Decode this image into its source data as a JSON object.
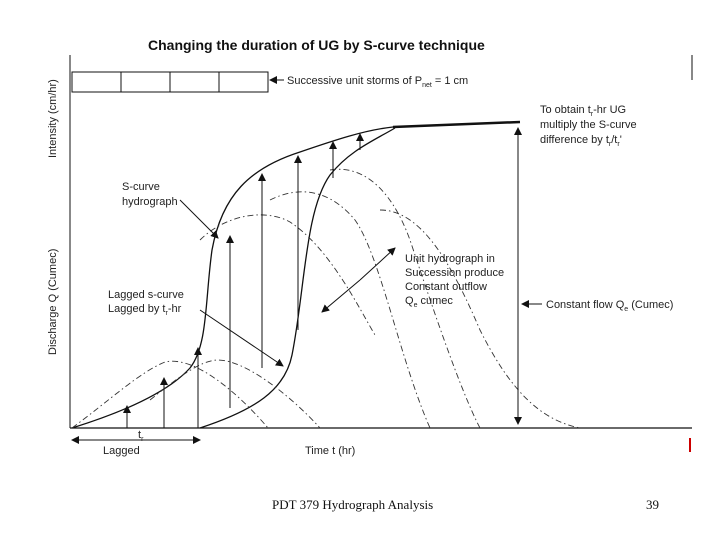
{
  "title": "Changing the duration of UG by S-curve technique",
  "y_axis_top": "Intensity (cm/hr)",
  "y_axis_bottom": "Discharge Q (Cumec)",
  "x_axis": "Time t (hr)",
  "storms_label_pre": "Successive unit  storms of P",
  "storms_label_sub": "net",
  "storms_label_post": " = 1 cm",
  "to_obtain_line1_pre": "To obtain t",
  "to_obtain_line1_sub": "r",
  "to_obtain_line1_post": "-hr UG",
  "to_obtain_line2": "multiply the S-curve",
  "to_obtain_line3_pre": "difference by t",
  "to_obtain_line3_sub": "r",
  "to_obtain_line3_mid": "/t",
  "to_obtain_line3_sub2": "r",
  "to_obtain_line3_post": "'",
  "scurve_line1": "S-curve",
  "scurve_line2": "hydrograph",
  "unit_line1": "Unit hydrograph in",
  "unit_line2": "Succession produce",
  "unit_line3": "Constant outflow",
  "unit_line4_pre": "Q",
  "unit_line4_sub": "e",
  "unit_line4_post": " cumec",
  "lagged_line1": "Lagged s-curve",
  "lagged_line2_pre": "Lagged by t",
  "lagged_line2_sub": "r",
  "lagged_line2_post": "-hr",
  "constant_flow_pre": "Constant flow  Q",
  "constant_flow_sub": "e",
  "constant_flow_post": " (Cumec)",
  "tr_label_pre": "t",
  "tr_label_sub": "r",
  "lagged_bottom": "Lagged",
  "footer": "PDT 379 Hydrograph Analysis",
  "page": "39"
}
